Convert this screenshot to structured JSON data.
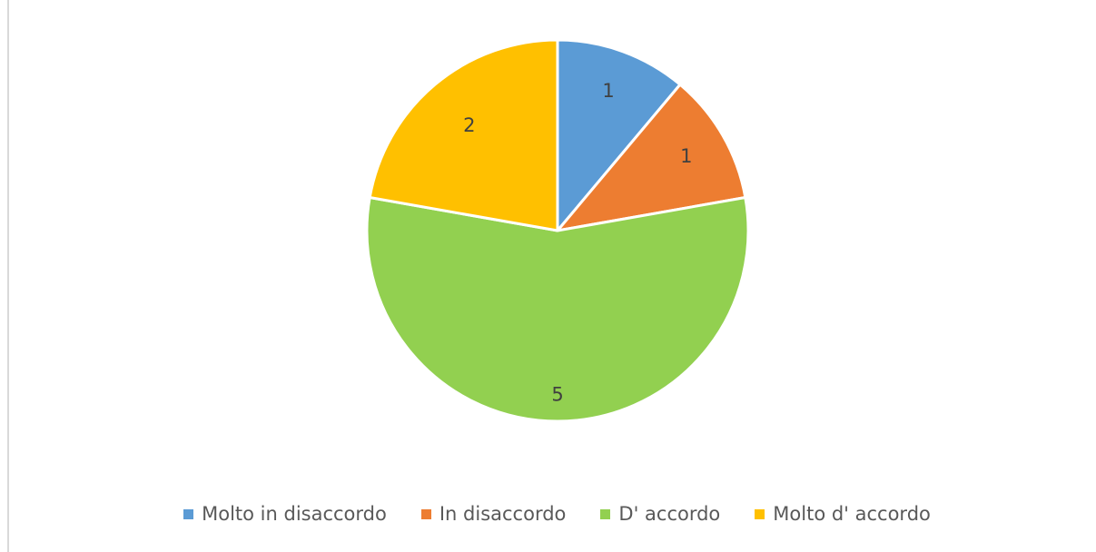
{
  "chart_data": {
    "type": "pie",
    "categories": [
      "Molto in disaccordo",
      "In disaccordo",
      "D' accordo",
      "Molto d' accordo"
    ],
    "values": [
      1,
      1,
      5,
      2
    ],
    "data_labels": [
      "1",
      "1",
      "5",
      "2"
    ],
    "colors": [
      "#5b9bd5",
      "#ed7d31",
      "#92d050",
      "#ffc000"
    ],
    "title": "",
    "legend_position": "bottom",
    "start_angle": "12 o'clock, clockwise"
  },
  "legend": {
    "items": [
      {
        "label": "Molto in disaccordo",
        "color": "#5b9bd5"
      },
      {
        "label": "In disaccordo",
        "color": "#ed7d31"
      },
      {
        "label": "D' accordo",
        "color": "#92d050"
      },
      {
        "label": "Molto d' accordo",
        "color": "#ffc000"
      }
    ]
  }
}
